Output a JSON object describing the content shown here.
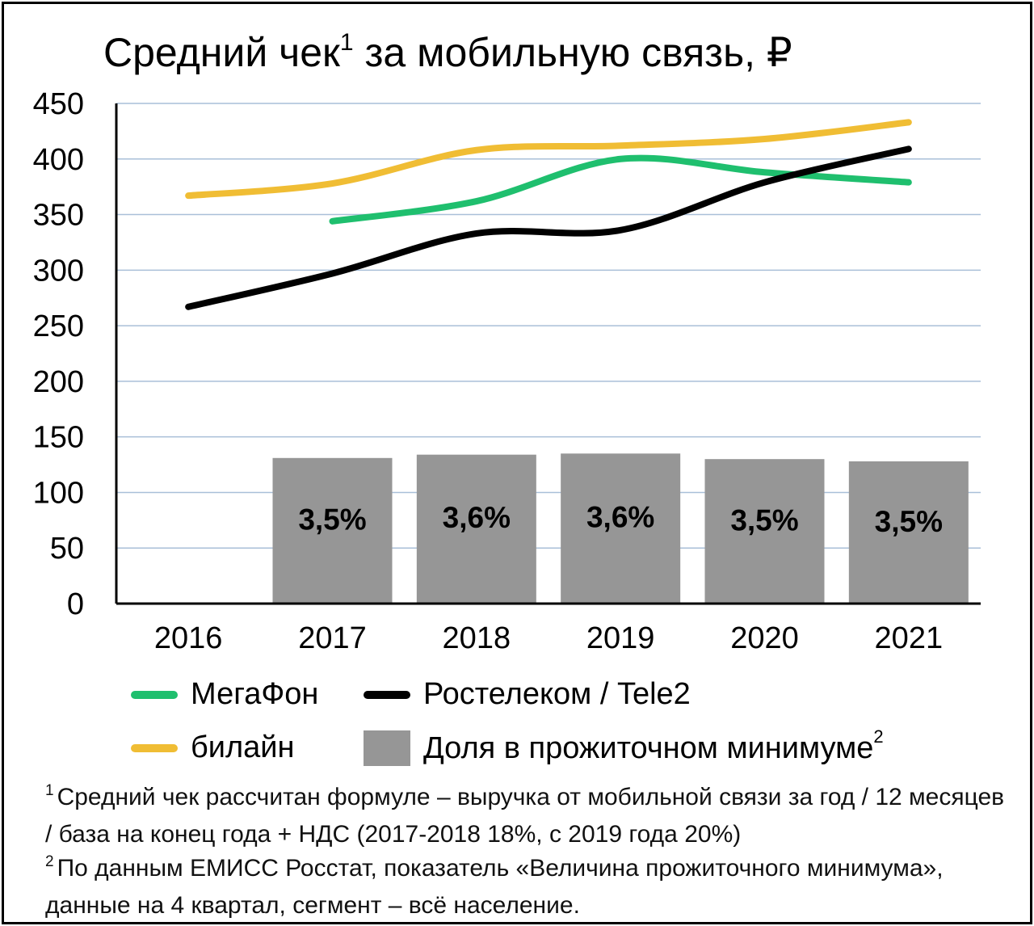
{
  "title": {
    "text": "Средний чек",
    "mark": "1",
    "suffix": "за мобильную связь, ₽"
  },
  "chart_data": {
    "type": "line",
    "title": "Средний чек¹ за мобильную связь, ₽",
    "categories": [
      "2016",
      "2017",
      "2018",
      "2019",
      "2020",
      "2021"
    ],
    "ylim": [
      0,
      450
    ],
    "yticks": [
      0,
      50,
      100,
      150,
      200,
      250,
      300,
      350,
      400,
      450
    ],
    "grid": true,
    "legend_position": "bottom",
    "series": [
      {
        "name": "МегаФон",
        "color": "#1fbf6e",
        "values": [
          null,
          344,
          362,
          400,
          388,
          379
        ]
      },
      {
        "name": "Ростелеком / Tele2",
        "color": "#000000",
        "values": [
          267,
          297,
          333,
          336,
          379,
          409
        ]
      },
      {
        "name": "билайн",
        "color": "#f0bd34",
        "values": [
          367,
          378,
          408,
          412,
          418,
          433
        ]
      }
    ],
    "bars": {
      "name": "Доля в прожиточном минимуме",
      "color": "#969696",
      "values": [
        null,
        131,
        134,
        135,
        130,
        128
      ],
      "labels": [
        null,
        "3,5%",
        "3,6%",
        "3,6%",
        "3,5%",
        "3,5%"
      ]
    }
  },
  "legend": {
    "megafon": "МегаФон",
    "rostelecom": "Ростелеком / Tele2",
    "beeline": "билайн",
    "share": "Доля в прожиточном минимуме",
    "share_mark": "2"
  },
  "footnotes": {
    "mark1": "1",
    "line1": "Средний чек рассчитан формуле – выручка от мобильной связи за год / 12 месяцев / база на конец года + НДС (2017-2018 18%, с 2019 года 20%)",
    "mark2": "2",
    "line2": "По данным ЕМИСС Росстат, показатель «Величина прожиточного минимума», данные на 4 квартал, сегмент – всё население."
  }
}
